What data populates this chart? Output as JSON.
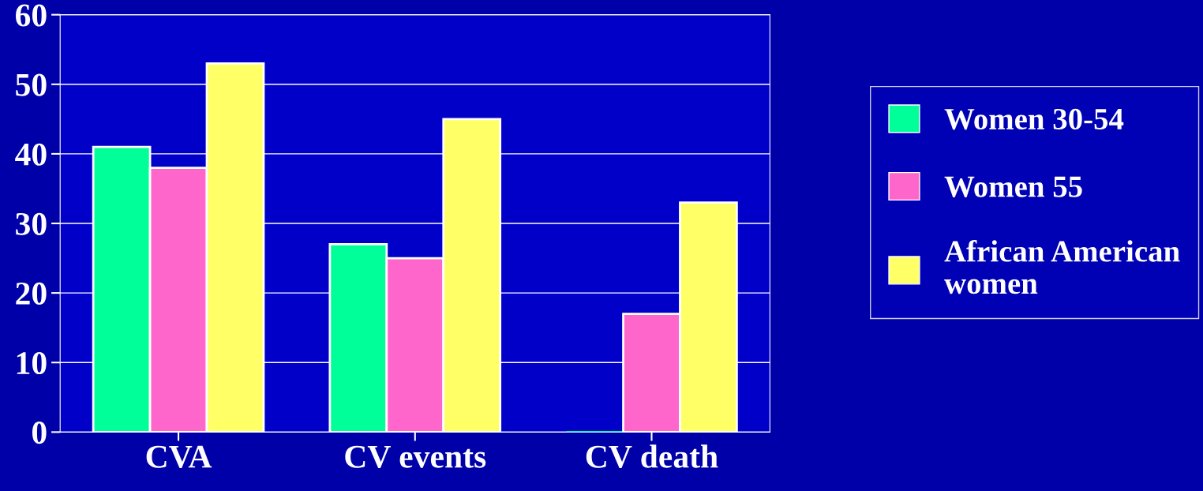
{
  "chart_data": {
    "type": "bar",
    "categories": [
      "CVA",
      "CV events",
      "CV death"
    ],
    "series": [
      {
        "name": "Women 30-54",
        "color": "#00ff99",
        "values": [
          41,
          27,
          0
        ]
      },
      {
        "name": "Women 55",
        "color": "#ff66cc",
        "values": [
          38,
          25,
          17
        ]
      },
      {
        "name": "African American women",
        "color": "#ffff66",
        "values": [
          53,
          45,
          33
        ]
      }
    ],
    "ylim": [
      0,
      60
    ],
    "yticks": [
      0,
      10,
      20,
      30,
      40,
      50,
      60
    ],
    "grid": "y",
    "legend": "right"
  }
}
